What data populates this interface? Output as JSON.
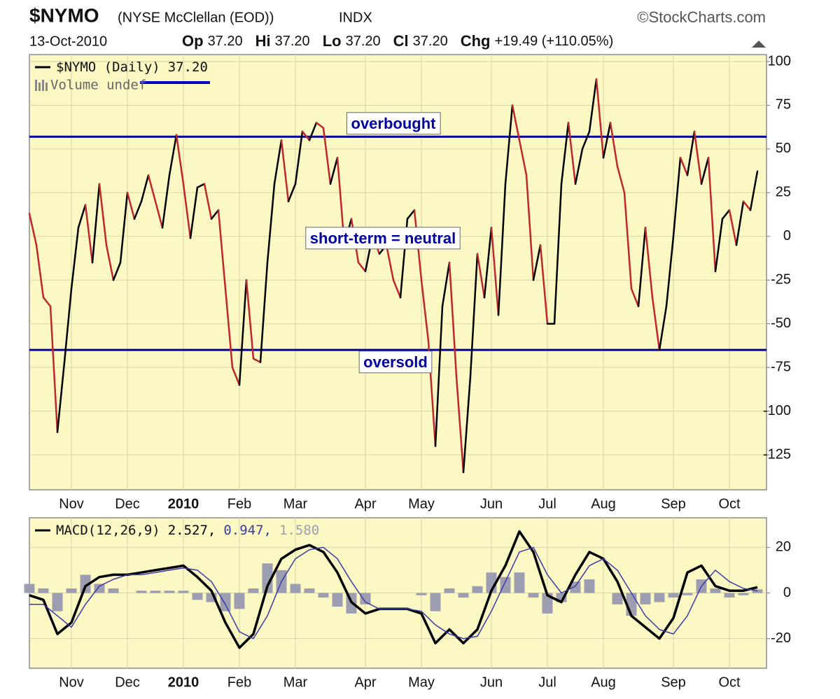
{
  "header": {
    "symbol": "$NYMO",
    "name": "(NYSE McClellan (EOD))",
    "exchange": "INDX",
    "brand": "©StockCharts.com",
    "date": "13-Oct-2010",
    "quote": [
      {
        "label": "Op",
        "value": "37.20"
      },
      {
        "label": "Hi",
        "value": "37.20"
      },
      {
        "label": "Lo",
        "value": "37.20"
      },
      {
        "label": "Cl",
        "value": "37.20"
      },
      {
        "label": "Chg",
        "value": "+19.49 (+110.05%)"
      }
    ]
  },
  "chart_data": [
    {
      "type": "line",
      "plot_background": "#fbf8c4",
      "grid": true,
      "categories": [
        null,
        null,
        null,
        null,
        null,
        null,
        "Nov",
        null,
        null,
        null,
        null,
        null,
        null,
        null,
        "Dec",
        null,
        null,
        null,
        null,
        null,
        null,
        null,
        "2010",
        null,
        null,
        null,
        null,
        null,
        null,
        null,
        "Feb",
        null,
        null,
        null,
        null,
        null,
        null,
        null,
        "Mar",
        null,
        null,
        null,
        null,
        null,
        null,
        null,
        null,
        null,
        "Apr",
        null,
        null,
        null,
        null,
        null,
        null,
        null,
        "May",
        null,
        null,
        null,
        null,
        null,
        null,
        null,
        null,
        null,
        "Jun",
        null,
        null,
        null,
        null,
        null,
        null,
        null,
        "Jul",
        null,
        null,
        null,
        null,
        null,
        null,
        null,
        "Aug",
        null,
        null,
        null,
        null,
        null,
        null,
        null,
        null,
        null,
        "Sep",
        null,
        null,
        null,
        null,
        null,
        null,
        null,
        "Oct",
        null,
        null,
        null,
        null
      ],
      "series": [
        {
          "name": "$NYMO (Daily)",
          "legend_value": "37.20",
          "up_color": "#000000",
          "down_color": "#c0272d",
          "values": [
            13,
            -5,
            -35,
            -40,
            -112,
            -72,
            -30,
            5,
            18,
            -15,
            30,
            -5,
            -25,
            -15,
            25,
            10,
            20,
            35,
            20,
            5,
            35,
            58,
            30,
            -1,
            28,
            30,
            10,
            15,
            -30,
            -75,
            -85,
            -25,
            -70,
            -72,
            -15,
            30,
            55,
            20,
            30,
            60,
            55,
            65,
            62,
            30,
            45,
            -5,
            10,
            -15,
            -20,
            0,
            -10,
            -5,
            -25,
            -35,
            10,
            15,
            -25,
            -60,
            -120,
            -40,
            -15,
            -80,
            -135,
            -80,
            -10,
            -35,
            5,
            -45,
            30,
            75,
            55,
            35,
            -25,
            -5,
            -50,
            -50,
            30,
            65,
            30,
            50,
            60,
            90,
            45,
            65,
            40,
            25,
            -30,
            -40,
            5,
            -35,
            -65,
            -40,
            0,
            45,
            35,
            60,
            30,
            45,
            -20,
            10,
            15,
            -5,
            20,
            15,
            37.2
          ]
        }
      ],
      "volume_legend": "Volume undef",
      "annotations": [
        {
          "text": "overbought",
          "level": 57,
          "color": "#0000a0"
        },
        {
          "text": "short-term = neutral"
        },
        {
          "text": "oversold",
          "level": -65,
          "color": "#0000a0"
        }
      ],
      "ylim": [
        -145,
        104
      ],
      "yticks": [
        -125,
        -100,
        -75,
        -50,
        -25,
        0,
        25,
        50,
        75,
        100
      ]
    },
    {
      "type": "line",
      "plot_background": "#fbf8c4",
      "grid": true,
      "legend_title": "MACD(12,26,9)",
      "categories": [
        null,
        null,
        null,
        "Nov",
        null,
        null,
        null,
        "Dec",
        null,
        null,
        null,
        "2010",
        null,
        null,
        null,
        "Feb",
        null,
        null,
        null,
        "Mar",
        null,
        null,
        null,
        null,
        "Apr",
        null,
        null,
        null,
        "May",
        null,
        null,
        null,
        null,
        "Jun",
        null,
        null,
        null,
        "Jul",
        null,
        null,
        null,
        "Aug",
        null,
        null,
        null,
        null,
        "Sep",
        null,
        null,
        null,
        "Oct",
        null,
        null
      ],
      "series": [
        {
          "mark": "bar",
          "color": "#9d9db2",
          "legend_value": "1.580",
          "values": [
            4,
            2,
            -8,
            2,
            8,
            4,
            2,
            0,
            1,
            1,
            1,
            1,
            -3,
            -4,
            -8,
            -7,
            2,
            13,
            10,
            4,
            2,
            -2,
            -6,
            -9,
            -5,
            0,
            0,
            0,
            -1,
            -8,
            2,
            -2,
            3,
            9,
            7,
            9,
            -2,
            -9,
            -4,
            5,
            6,
            0,
            -5,
            -10,
            -5,
            -4,
            -2,
            -1,
            6,
            2,
            -2,
            -1,
            1.58
          ]
        },
        {
          "mark": "line",
          "color": "#000000",
          "width": 3.5,
          "legend_value": "2.527,",
          "values": [
            -1,
            -3,
            -18,
            -13,
            3,
            7,
            8,
            8,
            9,
            10,
            11,
            12,
            7,
            1,
            -13,
            -24,
            -18,
            3,
            15,
            19,
            21,
            18,
            9,
            -4,
            -9,
            -7,
            -7,
            -7,
            -9,
            -22,
            -16,
            -22,
            -16,
            1,
            12,
            27,
            18,
            -1,
            -4,
            8,
            18,
            15,
            5,
            -10,
            -15,
            -20,
            -11,
            9,
            12,
            3,
            1,
            1,
            2.527
          ]
        },
        {
          "mark": "line",
          "color": "#3a3aa8",
          "width": 1.5,
          "legend_value": "0.947,",
          "values": [
            -5,
            -5,
            -10,
            -15,
            -5,
            3,
            6,
            8,
            8,
            9,
            10,
            11,
            10,
            5,
            -5,
            -17,
            -20,
            -10,
            5,
            15,
            19,
            20,
            15,
            5,
            -4,
            -7,
            -7,
            -7,
            -8,
            -14,
            -18,
            -20,
            -19,
            -8,
            5,
            18,
            20,
            8,
            0,
            3,
            12,
            15,
            10,
            0,
            -10,
            -16,
            -18,
            -10,
            3,
            10,
            5,
            2,
            0.947
          ]
        }
      ],
      "legend_order": [
        1,
        2,
        0
      ],
      "ylim": [
        -33,
        33
      ],
      "yticks": [
        -20,
        0,
        20
      ]
    }
  ]
}
